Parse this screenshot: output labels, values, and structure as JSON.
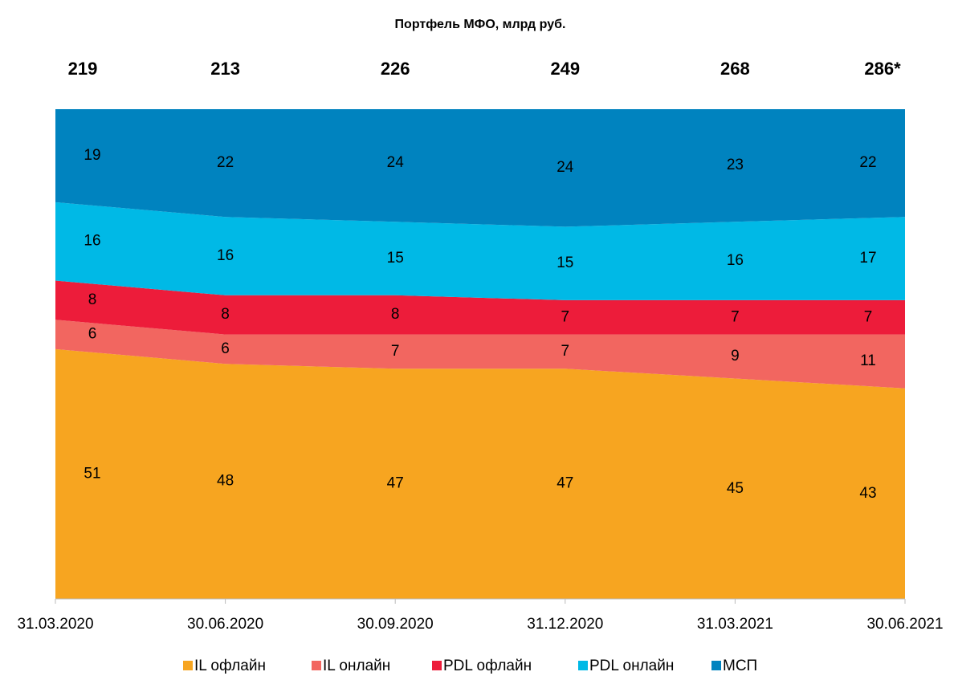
{
  "chart_data": {
    "type": "stacked_area_percent",
    "title": "Портфель МФО, млрд руб.",
    "categories": [
      "31.03.2020",
      "30.06.2020",
      "30.09.2020",
      "31.12.2020",
      "31.03.2021",
      "30.06.2021"
    ],
    "totals": [
      219,
      213,
      226,
      249,
      268,
      {
        "value": 286,
        "label": "286*"
      }
    ],
    "ylim": [
      0,
      100
    ],
    "series": [
      {
        "name": "IL офлайн",
        "color": "#f7a520",
        "values": [
          51,
          48,
          47,
          47,
          45,
          43
        ]
      },
      {
        "name": "IL онлайн",
        "color": "#f26660",
        "values": [
          6,
          6,
          7,
          7,
          9,
          11
        ]
      },
      {
        "name": "PDL офлайн",
        "color": "#ed1c3a",
        "values": [
          8,
          8,
          8,
          7,
          7,
          7
        ]
      },
      {
        "name": "PDL онлайн",
        "color": "#00b9e6",
        "values": [
          16,
          16,
          15,
          15,
          16,
          17
        ]
      },
      {
        "name": "МСП",
        "color": "#0083bf",
        "values": [
          19,
          22,
          24,
          24,
          23,
          22
        ]
      }
    ],
    "legend": "bottom"
  }
}
